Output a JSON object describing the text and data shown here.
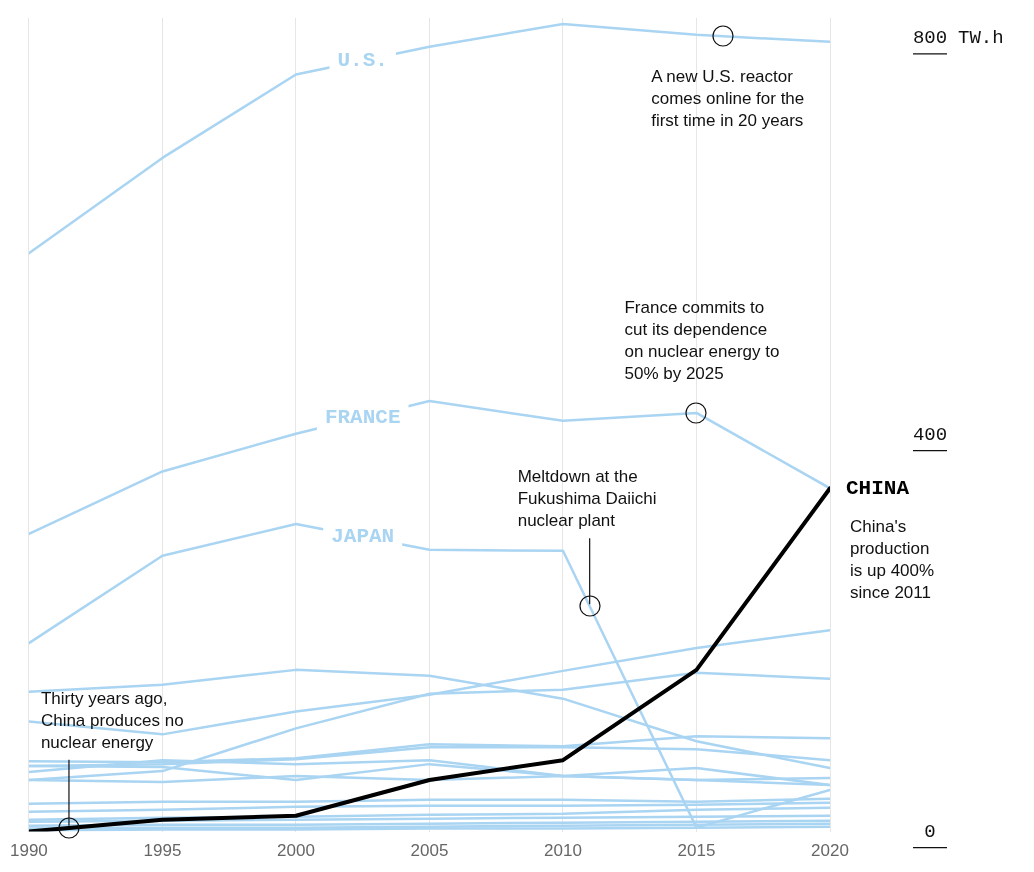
{
  "chart_data": {
    "type": "line",
    "ylabel": "TW.h",
    "x": [
      1990,
      1995,
      2000,
      2005,
      2010,
      2015,
      2020
    ],
    "xlim": [
      1990,
      2020
    ],
    "xticks": [
      1990,
      1995,
      2000,
      2005,
      2010,
      2015,
      2020
    ],
    "ylim": [
      0,
      820
    ],
    "yticks": [
      {
        "value": 0,
        "label": "0"
      },
      {
        "value": 400,
        "label": "400"
      },
      {
        "value": 800,
        "label": "800"
      }
    ],
    "grid": "x",
    "series": [
      {
        "name": "U.S.",
        "color": "#a9d4f2",
        "values": [
          583,
          679,
          763,
          791,
          814,
          803,
          796
        ]
      },
      {
        "name": "FRANCE",
        "color": "#a9d4f2",
        "values": [
          300,
          363,
          401,
          434,
          414,
          422,
          346
        ]
      },
      {
        "name": "JAPAN",
        "color": "#a9d4f2",
        "values": [
          190,
          278,
          310,
          284,
          283,
          4,
          42
        ]
      },
      {
        "color": "#a9d4f2",
        "values": [
          141,
          148,
          163,
          157,
          134,
          91,
          64
        ]
      },
      {
        "color": "#a9d4f2",
        "values": [
          111,
          98,
          121,
          138,
          162,
          185,
          203
        ]
      },
      {
        "color": "#a9d4f2",
        "values": [
          52,
          61,
          104,
          139,
          143,
          160,
          154
        ]
      },
      {
        "color": "#a9d4f2",
        "values": [
          71,
          70,
          74,
          88,
          86,
          96,
          94
        ]
      },
      {
        "color": "#a9d4f2",
        "values": [
          66,
          68,
          73,
          85,
          85,
          83,
          72
        ]
      },
      {
        "color": "#a9d4f2",
        "values": [
          60,
          72,
          68,
          72,
          56,
          64,
          47
        ]
      },
      {
        "color": "#a9d4f2",
        "values": [
          66,
          65,
          52,
          68,
          56,
          52,
          47
        ]
      },
      {
        "color": "#a9d4f2",
        "values": [
          52,
          50,
          56,
          52,
          56,
          52,
          54
        ]
      },
      {
        "color": "#a9d4f2",
        "values": [
          28,
          30,
          30,
          32,
          32,
          30,
          33
        ]
      },
      {
        "color": "#a9d4f2",
        "values": [
          20,
          22,
          25,
          26,
          26,
          27,
          29
        ]
      },
      {
        "color": "#a9d4f2",
        "values": [
          12,
          14,
          15,
          17,
          18,
          22,
          24
        ]
      },
      {
        "color": "#a9d4f2",
        "values": [
          10,
          11,
          12,
          13,
          14,
          15,
          16
        ]
      },
      {
        "color": "#a9d4f2",
        "values": [
          6,
          7,
          7,
          8,
          9,
          10,
          11
        ]
      },
      {
        "color": "#a9d4f2",
        "values": [
          3,
          4,
          4,
          5,
          6,
          7,
          8
        ]
      },
      {
        "color": "#a9d4f2",
        "values": [
          1,
          2,
          2,
          3,
          3,
          4,
          5
        ]
      },
      {
        "name": "CHINA",
        "color": "#000000",
        "values": [
          0,
          12,
          16,
          52,
          72,
          163,
          346
        ]
      }
    ],
    "annotations": [
      {
        "text": "A new U.S. reactor comes online for the first time in 20 years",
        "x": 2016,
        "y": 802
      },
      {
        "text": "France commits to cut its dependence on nuclear energy to 50% by 2025",
        "x": 2015,
        "y": 422
      },
      {
        "text": "Meltdown at the Fukushima Daiichi nuclear plant",
        "x": 2011,
        "y": 227
      },
      {
        "text": "Thirty years ago, China produces no nuclear energy",
        "x": 1991.5,
        "y": 4
      },
      "China's production is up 400% since 2011"
    ]
  }
}
